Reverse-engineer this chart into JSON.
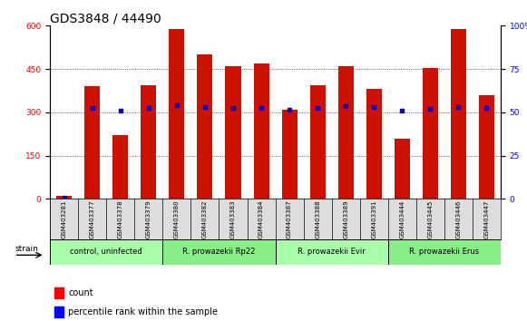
{
  "title": "GDS3848 / 44490",
  "samples": [
    "GSM403281",
    "GSM403377",
    "GSM403378",
    "GSM403379",
    "GSM403380",
    "GSM403382",
    "GSM403383",
    "GSM403384",
    "GSM403387",
    "GSM403388",
    "GSM403389",
    "GSM403391",
    "GSM403444",
    "GSM403445",
    "GSM403446",
    "GSM403447"
  ],
  "counts": [
    12,
    390,
    220,
    395,
    590,
    500,
    460,
    470,
    310,
    395,
    460,
    380,
    210,
    455,
    590,
    360
  ],
  "percentiles_left": [
    5,
    315,
    305,
    315,
    325,
    320,
    315,
    315,
    308,
    315,
    322,
    318,
    305,
    312,
    320,
    315
  ],
  "groups": [
    {
      "label": "control, uninfected",
      "start": 0,
      "end": 4,
      "color": "#aaffaa"
    },
    {
      "label": "R. prowazekii Rp22",
      "start": 4,
      "end": 8,
      "color": "#88ee88"
    },
    {
      "label": "R. prowazekii Evir",
      "start": 8,
      "end": 12,
      "color": "#aaffaa"
    },
    {
      "label": "R. prowazekii Erus",
      "start": 12,
      "end": 16,
      "color": "#88ee88"
    }
  ],
  "bar_color": "#cc1100",
  "dot_color": "#0000cc",
  "left_ylim": [
    0,
    600
  ],
  "right_ylim": [
    0,
    100
  ],
  "left_yticks": [
    0,
    150,
    300,
    450,
    600
  ],
  "right_yticks": [
    0,
    25,
    50,
    75,
    100
  ],
  "background_color": "#ffffff",
  "title_fontsize": 10,
  "tick_fontsize": 6.5,
  "bar_width": 0.55
}
